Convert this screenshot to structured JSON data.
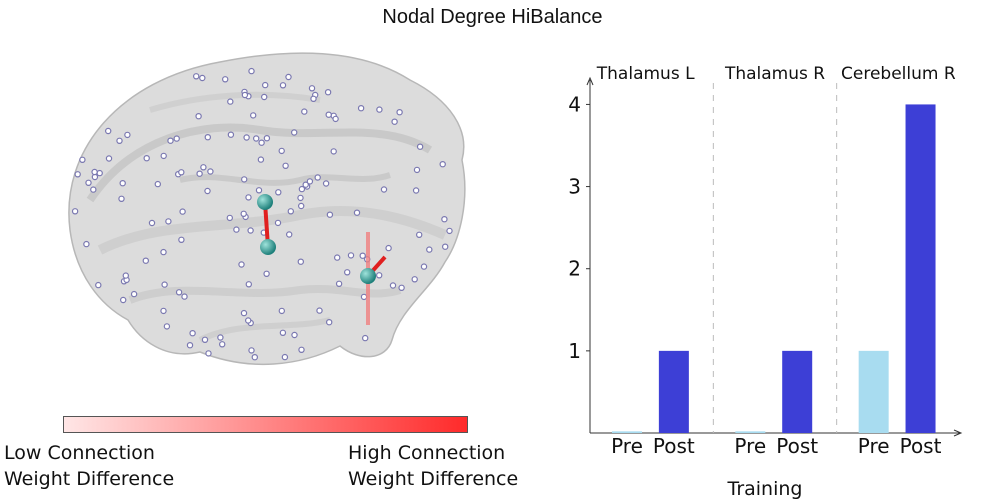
{
  "figure": {
    "title": "Nodal Degree HiBalance"
  },
  "colorbar": {
    "low_line1": "Low Connection",
    "low_line2": "Weight Difference",
    "high_line1": "High Connection",
    "high_line2": "Weight Difference",
    "colors": {
      "low": "#ffe6e6",
      "high": "#ff2a2a"
    }
  },
  "chart_data": {
    "type": "bar",
    "xlabel": "Training",
    "ylabel": "",
    "ylim": [
      0,
      4.2
    ],
    "yticks": [
      1,
      2,
      3,
      4
    ],
    "grid": false,
    "groups": [
      {
        "name": "Thalamus L",
        "categories": [
          "Pre",
          "Post"
        ],
        "values": [
          0,
          1
        ]
      },
      {
        "name": "Thalamus R",
        "categories": [
          "Pre",
          "Post"
        ],
        "values": [
          0,
          1
        ]
      },
      {
        "name": "Cerebellum R",
        "categories": [
          "Pre",
          "Post"
        ],
        "values": [
          1,
          4
        ]
      }
    ],
    "colors": {
      "Pre": "#a8dcf0",
      "Post": "#3d3fd6"
    }
  }
}
